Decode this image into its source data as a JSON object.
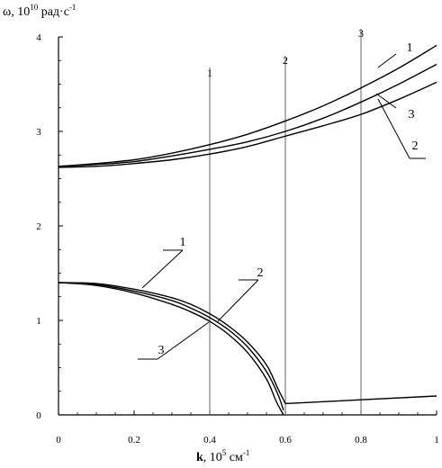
{
  "chart_data": {
    "type": "line",
    "xlabel": {
      "base": "k",
      "mid": ", 10",
      "sup": "5",
      "unit": " см",
      "unit_sup": "-1"
    },
    "ylabel": {
      "base": "ω, 10",
      "sup": "10",
      "unit": " рад·с",
      "unit_sup": "-1"
    },
    "xlim": [
      0,
      1
    ],
    "ylim": [
      0,
      4
    ],
    "x_ticks": [
      "0",
      "0.2",
      "0.4",
      "0.6",
      "0.8",
      "1"
    ],
    "y_ticks": [
      "0",
      "1",
      "2",
      "3",
      "4"
    ],
    "grid": false,
    "series": [
      {
        "name": "1",
        "branch": "upper",
        "x": [
          0,
          0.1,
          0.2,
          0.3,
          0.4,
          0.5,
          0.6,
          0.7,
          0.8,
          0.9,
          1.0
        ],
        "y": [
          2.63,
          2.66,
          2.7,
          2.77,
          2.86,
          2.97,
          3.11,
          3.27,
          3.46,
          3.67,
          3.91
        ]
      },
      {
        "name": "3",
        "branch": "upper",
        "x": [
          0,
          0.1,
          0.2,
          0.3,
          0.4,
          0.5,
          0.6,
          0.7,
          0.8,
          0.9,
          1.0
        ],
        "y": [
          2.63,
          2.65,
          2.68,
          2.74,
          2.81,
          2.89,
          3.0,
          3.14,
          3.31,
          3.5,
          3.71
        ]
      },
      {
        "name": "2",
        "branch": "upper",
        "x": [
          0,
          0.1,
          0.2,
          0.3,
          0.4,
          0.5,
          0.6,
          0.7,
          0.8,
          0.9,
          1.0
        ],
        "y": [
          2.62,
          2.63,
          2.66,
          2.7,
          2.76,
          2.84,
          2.95,
          3.06,
          3.18,
          3.34,
          3.52
        ]
      },
      {
        "name": "1",
        "branch": "lower",
        "x": [
          0,
          0.1,
          0.2,
          0.3,
          0.35,
          0.4,
          0.45,
          0.5,
          0.55,
          0.58,
          0.6
        ],
        "y": [
          1.4,
          1.39,
          1.33,
          1.24,
          1.17,
          1.07,
          0.94,
          0.77,
          0.53,
          0.28,
          0.12
        ]
      },
      {
        "name": "2",
        "branch": "lower",
        "x": [
          0,
          0.1,
          0.2,
          0.3,
          0.35,
          0.4,
          0.45,
          0.5,
          0.55,
          0.58,
          0.595
        ],
        "y": [
          1.4,
          1.38,
          1.31,
          1.21,
          1.13,
          1.03,
          0.9,
          0.72,
          0.46,
          0.22,
          0.05
        ]
      },
      {
        "name": "3",
        "branch": "lower",
        "x": [
          0,
          0.1,
          0.2,
          0.3,
          0.35,
          0.4,
          0.45,
          0.5,
          0.55,
          0.575,
          0.595
        ],
        "y": [
          1.4,
          1.37,
          1.29,
          1.17,
          1.09,
          0.99,
          0.85,
          0.66,
          0.38,
          0.15,
          0.0
        ]
      },
      {
        "name": "",
        "branch": "tail",
        "x": [
          0.6,
          1.0
        ],
        "y": [
          0.12,
          0.2
        ]
      }
    ],
    "vertical_lines": [
      {
        "x": 0.4,
        "label": "1"
      },
      {
        "x": 0.6,
        "label": "2"
      },
      {
        "x": 0.8,
        "label": "3"
      }
    ],
    "curve_labels": [
      {
        "text": "1",
        "branch": "upper"
      },
      {
        "text": "3",
        "branch": "upper"
      },
      {
        "text": "2",
        "branch": "upper"
      },
      {
        "text": "1",
        "branch": "lower"
      },
      {
        "text": "2",
        "branch": "lower"
      },
      {
        "text": "3",
        "branch": "lower"
      }
    ]
  }
}
